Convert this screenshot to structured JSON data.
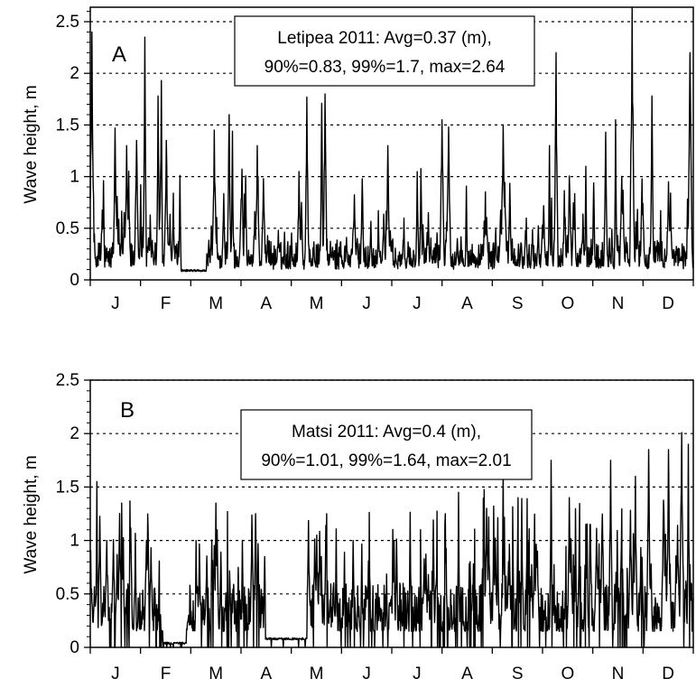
{
  "chart_data": [
    {
      "type": "line",
      "panel_label": "A",
      "stats_line1": "Letipea 2011: Avg=0.37 (m),",
      "stats_line2": "90%=0.83, 99%=1.7, max=2.64",
      "ylabel": "Wave height, m",
      "ylim": [
        0,
        2.64
      ],
      "yticks": [
        "0",
        "0.5",
        "1",
        "1.5",
        "2",
        "2.5"
      ],
      "ytick_values": [
        0,
        0.5,
        1,
        1.5,
        2,
        2.5
      ],
      "months": [
        "J",
        "F",
        "M",
        "A",
        "M",
        "J",
        "J",
        "A",
        "S",
        "O",
        "N",
        "D"
      ],
      "grid": "horizontal dotted at each tick",
      "stats": {
        "avg": 0.37,
        "p90": 0.83,
        "p99": 1.7,
        "max": 2.64
      },
      "peaks": [
        {
          "day": 1,
          "value": 2.4
        },
        {
          "day": 15,
          "value": 1.47
        },
        {
          "day": 22,
          "value": 1.3
        },
        {
          "day": 28,
          "value": 1.35
        },
        {
          "day": 33,
          "value": 2.35
        },
        {
          "day": 41,
          "value": 1.78
        },
        {
          "day": 43,
          "value": 1.93
        },
        {
          "day": 46,
          "value": 1.35
        },
        {
          "day": 75,
          "value": 1.45
        },
        {
          "day": 84,
          "value": 1.6
        },
        {
          "day": 86,
          "value": 1.44
        },
        {
          "day": 101,
          "value": 1.3
        },
        {
          "day": 131,
          "value": 1.77
        },
        {
          "day": 140,
          "value": 1.71
        },
        {
          "day": 142,
          "value": 1.8
        },
        {
          "day": 180,
          "value": 1.3
        },
        {
          "day": 213,
          "value": 1.55
        },
        {
          "day": 217,
          "value": 1.48
        },
        {
          "day": 250,
          "value": 1.5
        },
        {
          "day": 278,
          "value": 1.3
        },
        {
          "day": 282,
          "value": 2.2
        },
        {
          "day": 300,
          "value": 1.1
        },
        {
          "day": 312,
          "value": 1.43
        },
        {
          "day": 318,
          "value": 1.55
        },
        {
          "day": 328,
          "value": 2.64
        },
        {
          "day": 340,
          "value": 1.78
        },
        {
          "day": 350,
          "value": 0.95
        },
        {
          "day": 363,
          "value": 2.2
        }
      ],
      "calm_intervals": [
        {
          "start": 55,
          "end": 70,
          "level": 0.08
        }
      ]
    },
    {
      "type": "line",
      "panel_label": "B",
      "stats_line1": "Matsi 2011: Avg=0.4 (m),",
      "stats_line2": "90%=1.01, 99%=1.64, max=2.01",
      "ylabel": "Wave height, m",
      "ylim": [
        0,
        2.5
      ],
      "yticks": [
        "0",
        "0.5",
        "1",
        "1.5",
        "2",
        "2.5"
      ],
      "ytick_values": [
        0,
        0.5,
        1,
        1.5,
        2,
        2.5
      ],
      "months": [
        "J",
        "F",
        "M",
        "A",
        "M",
        "J",
        "J",
        "A",
        "S",
        "O",
        "N",
        "D"
      ],
      "grid": "horizontal dotted at each tick",
      "stats": {
        "avg": 0.4,
        "p90": 1.01,
        "p99": 1.64,
        "max": 2.01
      },
      "peaks": [
        {
          "day": 4,
          "value": 1.55
        },
        {
          "day": 10,
          "value": 1.0
        },
        {
          "day": 19,
          "value": 1.35
        },
        {
          "day": 24,
          "value": 1.37
        },
        {
          "day": 34,
          "value": 1.0
        },
        {
          "day": 64,
          "value": 1.0
        },
        {
          "day": 76,
          "value": 1.35
        },
        {
          "day": 83,
          "value": 1.27
        },
        {
          "day": 92,
          "value": 1.0
        },
        {
          "day": 100,
          "value": 1.25
        },
        {
          "day": 137,
          "value": 1.05
        },
        {
          "day": 143,
          "value": 1.25
        },
        {
          "day": 159,
          "value": 1.0
        },
        {
          "day": 184,
          "value": 1.0
        },
        {
          "day": 200,
          "value": 1.1
        },
        {
          "day": 215,
          "value": 1.25
        },
        {
          "day": 223,
          "value": 1.45
        },
        {
          "day": 240,
          "value": 1.3
        },
        {
          "day": 250,
          "value": 1.7
        },
        {
          "day": 259,
          "value": 1.4
        },
        {
          "day": 279,
          "value": 1.75
        },
        {
          "day": 290,
          "value": 1.4
        },
        {
          "day": 300,
          "value": 1.15
        },
        {
          "day": 315,
          "value": 1.75
        },
        {
          "day": 330,
          "value": 1.6
        },
        {
          "day": 338,
          "value": 1.85
        },
        {
          "day": 350,
          "value": 1.85
        },
        {
          "day": 358,
          "value": 2.01
        },
        {
          "day": 362,
          "value": 1.9
        }
      ],
      "calm_intervals": [
        {
          "start": 44,
          "end": 58,
          "level": 0.03
        },
        {
          "start": 106,
          "end": 131,
          "level": 0.07
        }
      ]
    }
  ]
}
